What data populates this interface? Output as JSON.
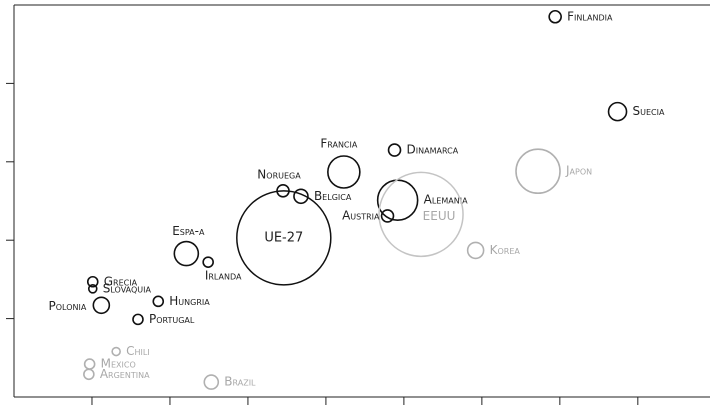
{
  "chart_data": {
    "type": "scatter",
    "xlim": [
      0,
      8.9
    ],
    "ylim": [
      0,
      5
    ],
    "xticks": [
      1,
      2,
      3,
      4,
      5,
      6,
      7,
      8
    ],
    "yticks": [
      1,
      2,
      3,
      4
    ],
    "points": [
      {
        "label": "Finlandia",
        "x": 6.94,
        "y": 4.85,
        "size": 6,
        "color": "#111111"
      },
      {
        "label": "Suecia",
        "x": 7.74,
        "y": 3.64,
        "size": 9,
        "color": "#111111"
      },
      {
        "label": "Francia",
        "x": 4.23,
        "y": 2.87,
        "size": 16,
        "color": "#111111"
      },
      {
        "label": "Dinamarca",
        "x": 4.88,
        "y": 3.15,
        "size": 6,
        "color": "#111111"
      },
      {
        "label": "Japon",
        "x": 6.72,
        "y": 2.88,
        "size": 22,
        "color": "#b0b0b0"
      },
      {
        "label": "Noruega",
        "x": 3.45,
        "y": 2.63,
        "size": 6,
        "color": "#111111"
      },
      {
        "label": "Belgica",
        "x": 3.68,
        "y": 2.56,
        "size": 7,
        "color": "#111111"
      },
      {
        "label": "Alemania",
        "x": 4.92,
        "y": 2.51,
        "size": 20,
        "color": "#111111"
      },
      {
        "label": "EEUU",
        "x": 5.22,
        "y": 2.33,
        "size": 42,
        "color": "#c4c4c4"
      },
      {
        "label": "Austria",
        "x": 4.79,
        "y": 2.31,
        "size": 6,
        "color": "#111111"
      },
      {
        "label": "UE-27",
        "x": 3.46,
        "y": 2.03,
        "size": 47,
        "color": "#111111"
      },
      {
        "label": "Korea",
        "x": 5.92,
        "y": 1.87,
        "size": 8,
        "color": "#b0b0b0"
      },
      {
        "label": "Espa-a",
        "x": 2.21,
        "y": 1.83,
        "size": 12,
        "color": "#111111"
      },
      {
        "label": "Irlanda",
        "x": 2.49,
        "y": 1.72,
        "size": 5,
        "color": "#111111"
      },
      {
        "label": "Grecia",
        "x": 1.01,
        "y": 1.47,
        "size": 5,
        "color": "#111111"
      },
      {
        "label": "Slovaquia",
        "x": 1.01,
        "y": 1.38,
        "size": 4,
        "color": "#111111"
      },
      {
        "label": "Polonia",
        "x": 1.12,
        "y": 1.17,
        "size": 8,
        "color": "#111111"
      },
      {
        "label": "Hungria",
        "x": 1.85,
        "y": 1.22,
        "size": 5,
        "color": "#111111"
      },
      {
        "label": "Portugal",
        "x": 1.59,
        "y": 0.99,
        "size": 5,
        "color": "#111111"
      },
      {
        "label": "Chili",
        "x": 1.31,
        "y": 0.58,
        "size": 4,
        "color": "#b0b0b0"
      },
      {
        "label": "Mexico",
        "x": 0.97,
        "y": 0.42,
        "size": 5,
        "color": "#b0b0b0"
      },
      {
        "label": "Argentina",
        "x": 0.96,
        "y": 0.29,
        "size": 5,
        "color": "#b0b0b0"
      },
      {
        "label": "Brazil",
        "x": 2.53,
        "y": 0.19,
        "size": 7,
        "color": "#b0b0b0"
      }
    ]
  }
}
